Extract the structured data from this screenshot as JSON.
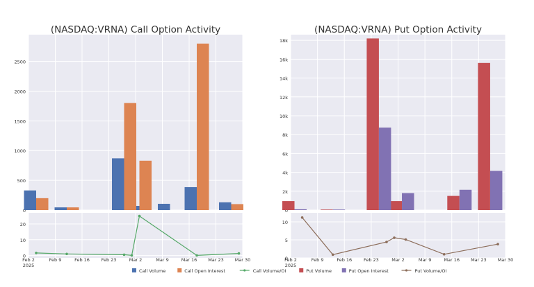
{
  "colors": {
    "plot_bg": "#eaeaf2",
    "grid": "#ffffff",
    "call_volume": "#4c72b0",
    "call_oi": "#dd8452",
    "call_ratio": "#55a868",
    "put_volume": "#c44e52",
    "put_oi": "#8172b3",
    "put_ratio": "#8c6d5a",
    "text": "#333333"
  },
  "chart_data": [
    {
      "type": "bar",
      "title": "(NASDAQ:VRNA) Call Option Activity",
      "xlabel": "",
      "ylabel": "",
      "categories": [
        "Feb 4",
        "Feb 12",
        "Feb 27",
        "Mar 3",
        "Mar 11",
        "Mar 18",
        "Mar 27"
      ],
      "x_ticks": [
        "Feb 2\n2025",
        "Feb 9",
        "Feb 16",
        "Feb 23",
        "Mar 2",
        "Mar 9",
        "Mar 16",
        "Mar 23",
        "Mar 30"
      ],
      "ylim": [
        0,
        2950
      ],
      "y_ticks": [
        0,
        500,
        1000,
        1500,
        2000,
        2500
      ],
      "series": [
        {
          "name": "Call Volume",
          "values": [
            330,
            45,
            870,
            70,
            105,
            385,
            130
          ]
        },
        {
          "name": "Call Open Interest",
          "values": [
            200,
            45,
            1800,
            830,
            0,
            2800,
            100
          ]
        }
      ],
      "ratio": {
        "name": "Call Volume/OI",
        "points": [
          {
            "date": "2025-02-04",
            "value": 1.6
          },
          {
            "date": "2025-02-12",
            "value": 1.0
          },
          {
            "date": "2025-02-27",
            "value": 0.5
          },
          {
            "date": "2025-03-01",
            "value": 0.1
          },
          {
            "date": "2025-03-03",
            "value": 25
          },
          {
            "date": "2025-03-18",
            "value": 0.1
          },
          {
            "date": "2025-03-29",
            "value": 1.3
          }
        ],
        "ylim": [
          -1.5,
          27
        ],
        "y_ticks": [
          0,
          10,
          20
        ]
      },
      "grid": true
    },
    {
      "type": "bar",
      "title": "(NASDAQ:VRNA) Put Option Activity",
      "xlabel": "",
      "ylabel": "",
      "categories": [
        "Feb 3",
        "Feb 13",
        "Feb 25",
        "Mar 3",
        "Mar 11",
        "Mar 18",
        "Mar 26"
      ],
      "x_ticks": [
        "Feb 2\n2025",
        "Feb 9",
        "Feb 16",
        "Feb 23",
        "Mar 2",
        "Mar 9",
        "Mar 16",
        "Mar 23",
        "Mar 30"
      ],
      "ylim": [
        0,
        18600
      ],
      "y_ticks": [
        "0",
        "2k",
        "4k",
        "6k",
        "8k",
        "10k",
        "12k",
        "14k",
        "16k",
        "18k"
      ],
      "series": [
        {
          "name": "Put Volume",
          "values": [
            950,
            50,
            18200,
            950,
            0,
            1500,
            15600
          ]
        },
        {
          "name": "Put Open Interest",
          "values": [
            80,
            50,
            8750,
            1800,
            0,
            2150,
            4150
          ]
        }
      ],
      "ratio": {
        "name": "Put Volume/OI",
        "points": [
          {
            "date": "2025-02-05",
            "value": 11.2
          },
          {
            "date": "2025-02-13",
            "value": 0.9
          },
          {
            "date": "2025-02-27",
            "value": 4.4
          },
          {
            "date": "2025-03-01",
            "value": 5.6
          },
          {
            "date": "2025-03-04",
            "value": 5.1
          },
          {
            "date": "2025-03-14",
            "value": 1.0
          },
          {
            "date": "2025-03-28",
            "value": 3.8
          }
        ],
        "ylim": [
          0,
          12.5
        ],
        "y_ticks": [
          0,
          5,
          10
        ]
      },
      "grid": true
    }
  ],
  "legend": [
    {
      "name": "Call Volume",
      "kind": "bar",
      "color_key": "call_volume"
    },
    {
      "name": "Call Open Interest",
      "kind": "bar",
      "color_key": "call_oi"
    },
    {
      "name": "Call Volume/OI",
      "kind": "line",
      "color_key": "call_ratio"
    },
    {
      "name": "Put Volume",
      "kind": "bar",
      "color_key": "put_volume"
    },
    {
      "name": "Put Open Interest",
      "kind": "bar",
      "color_key": "put_oi"
    },
    {
      "name": "Put Volume/OI",
      "kind": "line",
      "color_key": "put_ratio"
    }
  ]
}
